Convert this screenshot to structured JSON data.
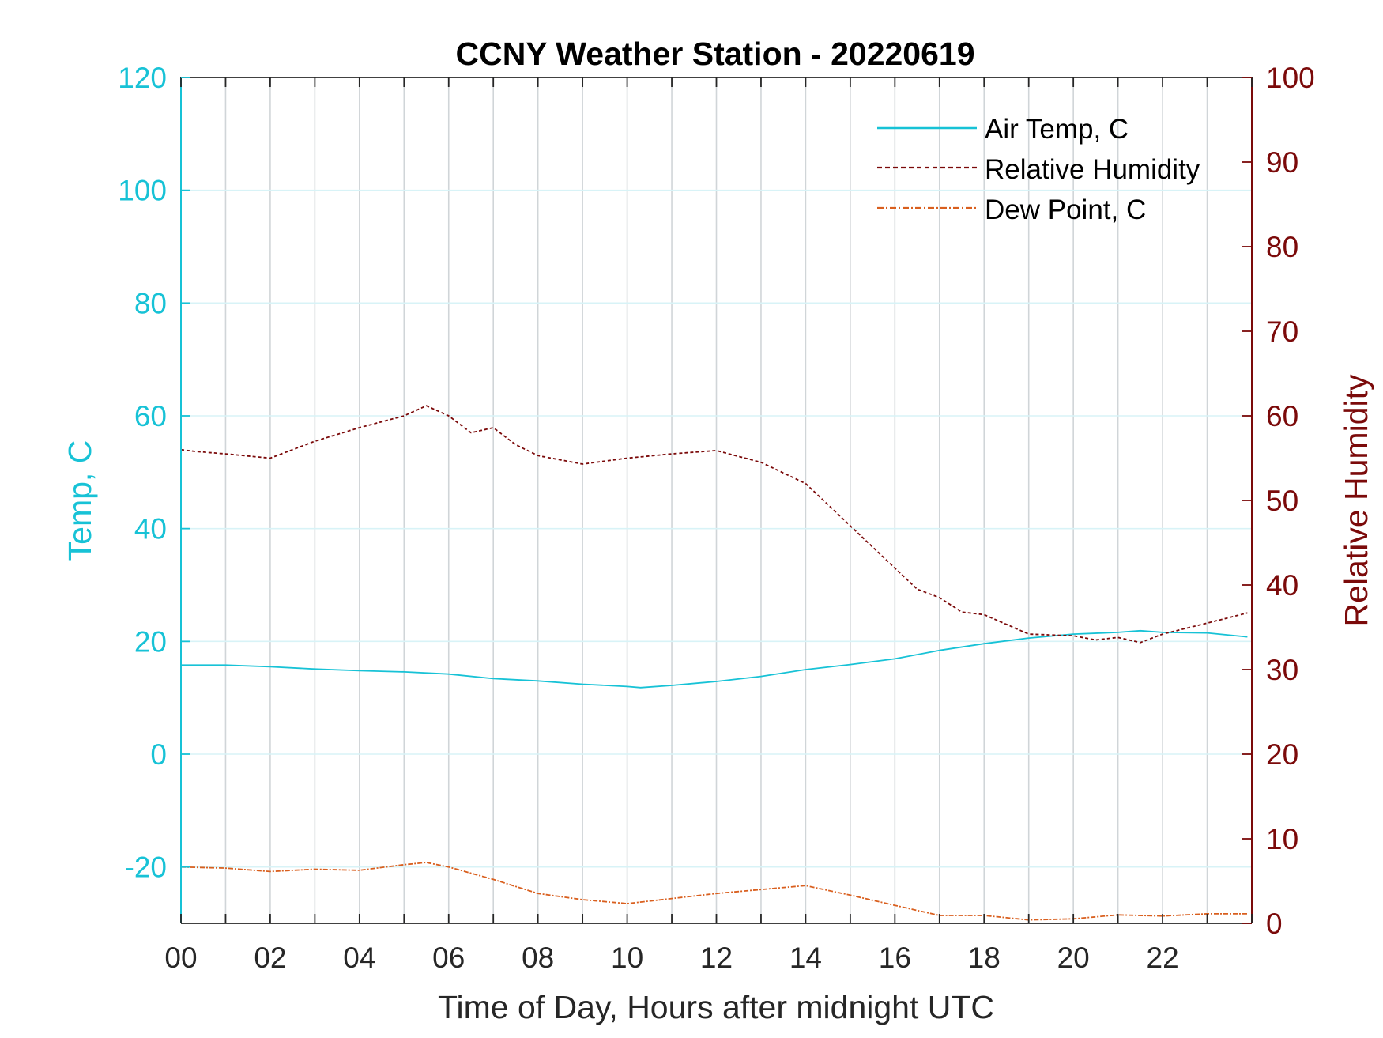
{
  "chart_data": {
    "type": "line",
    "title": "CCNY Weather Station - 20220619",
    "xlabel": "Time of Day, Hours after midnight UTC",
    "ylabel_left": "Temp, C",
    "ylabel_right": "Relative Humidity",
    "xlim": [
      0,
      24
    ],
    "ylim_left": [
      -30,
      120
    ],
    "ylim_right": [
      0,
      100
    ],
    "x_ticks": [
      0,
      2,
      4,
      6,
      8,
      10,
      12,
      14,
      16,
      18,
      20,
      22
    ],
    "x_tick_labels": [
      "00",
      "02",
      "04",
      "06",
      "08",
      "10",
      "12",
      "14",
      "16",
      "18",
      "20",
      "22"
    ],
    "y_ticks_left": [
      -20,
      0,
      20,
      40,
      60,
      80,
      100,
      120
    ],
    "y_ticks_right": [
      0,
      10,
      20,
      30,
      40,
      50,
      60,
      70,
      80,
      90,
      100
    ],
    "grid": true,
    "legend_position": "top-right",
    "colors": {
      "temp": "#17c2d6",
      "humidity": "#7b0a0a",
      "dewpoint": "#d95f1e",
      "grid_vertical": "#d0d5d8",
      "grid_horizontal": "#d8f3f7"
    },
    "series": [
      {
        "name": "Air Temp, C",
        "axis": "left",
        "style": "solid",
        "x": [
          0,
          1,
          2,
          3,
          4,
          5,
          6,
          7,
          8,
          9,
          10,
          10.3,
          11,
          12,
          13,
          14,
          15,
          16,
          17,
          18,
          19,
          20,
          21,
          21.5,
          22,
          23,
          23.9
        ],
        "y": [
          15.8,
          15.8,
          15.5,
          15.1,
          14.8,
          14.6,
          14.2,
          13.4,
          13.0,
          12.4,
          12.0,
          11.8,
          12.2,
          12.9,
          13.8,
          15.0,
          15.9,
          16.9,
          18.4,
          19.6,
          20.6,
          21.3,
          21.6,
          21.9,
          21.6,
          21.5,
          20.8
        ]
      },
      {
        "name": "Relative Humidity",
        "axis": "right",
        "style": "dashed",
        "x": [
          0,
          0.3,
          1,
          2,
          3,
          4,
          5,
          5.5,
          6,
          6.5,
          7,
          7.5,
          8,
          9,
          10,
          11,
          12,
          13,
          14,
          15,
          16,
          16.5,
          17,
          17.5,
          18,
          19,
          20,
          20.5,
          21,
          21.5,
          22,
          23,
          23.9
        ],
        "y": [
          56,
          55.8,
          55.5,
          55.0,
          57.0,
          58.6,
          60.0,
          61.2,
          60.0,
          58.0,
          58.6,
          56.6,
          55.3,
          54.3,
          55.0,
          55.5,
          55.9,
          54.5,
          52.0,
          47.0,
          42.0,
          39.5,
          38.5,
          36.8,
          36.5,
          34.2,
          34.0,
          33.5,
          33.8,
          33.2,
          34.2,
          35.5,
          36.7
        ]
      },
      {
        "name": "Dew Point, C",
        "axis": "left",
        "style": "dashdot",
        "x": [
          0,
          1,
          2,
          3,
          4,
          5,
          5.5,
          6,
          7,
          8,
          9,
          10,
          11,
          12,
          13,
          14,
          15,
          16,
          17,
          18,
          19,
          20,
          21,
          22,
          23,
          23.9
        ],
        "y": [
          -20.0,
          -20.2,
          -20.8,
          -20.4,
          -20.6,
          -19.6,
          -19.2,
          -20.0,
          -22.2,
          -24.7,
          -25.8,
          -26.5,
          -25.6,
          -24.7,
          -24.0,
          -23.3,
          -25.0,
          -26.8,
          -28.6,
          -28.6,
          -29.4,
          -29.2,
          -28.5,
          -28.7,
          -28.3,
          -28.3
        ]
      }
    ]
  }
}
